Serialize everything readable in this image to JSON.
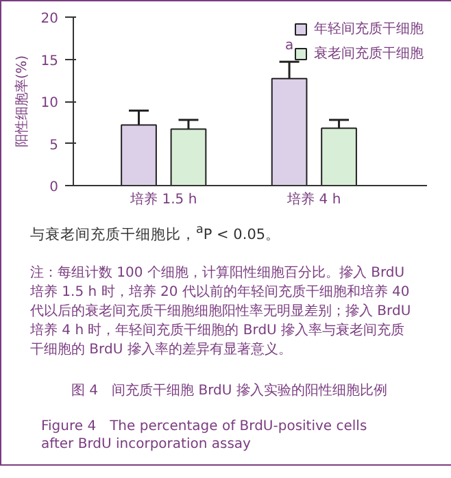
{
  "chart_data": {
    "type": "bar",
    "title": "图 4　间充质干细胞 BrdU 摻入实验的阳性细胞比例",
    "subtitle": "Figure 4　The percentage of BrdU-positive cells after BrdU incorporation assay",
    "ylabel": "阳性细胞率(%)",
    "categories": [
      "培养 1.5 h",
      "培养 4 h"
    ],
    "series": [
      {
        "name": "年轻间充质干细胞",
        "color": "#dcd0e8",
        "values": [
          7.2,
          12.7
        ],
        "errors": [
          1.7,
          2.0
        ]
      },
      {
        "name": "衰老间充质干细胞",
        "color": "#d8eed6",
        "values": [
          6.7,
          6.8
        ],
        "errors": [
          1.1,
          1.0
        ]
      }
    ],
    "ylim": [
      0,
      20
    ],
    "yticks": [
      0,
      5,
      10,
      15,
      20
    ],
    "grid": false,
    "legend": "top right",
    "annotations": [
      "a",
      "与衰老间充质干细胞比，$^{a}$P < 0.05。",
      "注：每组计数 100 个细胞，计算阳性细胞百分比。摻入 BrdU 培养 1.5 h 时，培养 20 代以前的年轻间充质干细胞和培养 40 代以后的衰老间充质干细胞细胞阳性率无明显差别；摻入 BrdU 培养 4 h 时，年轻间充质干细胞的 BrdU 摻入率与衰老间充质干细胞的 BrdU 摻入率的差异有显著意义。"
    ]
  }
}
